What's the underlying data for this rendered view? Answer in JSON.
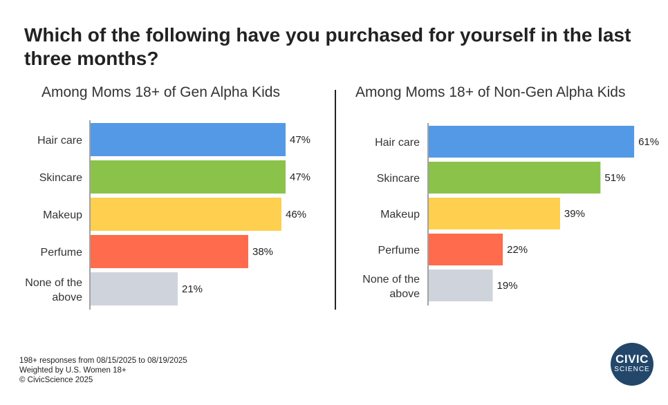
{
  "title": "Which of the following have you purchased for yourself in the last three months?",
  "colors": [
    "#5499e5",
    "#8bc34a",
    "#ffd04f",
    "#ff6b4d",
    "#cfd4dc"
  ],
  "chart_data": [
    {
      "type": "bar",
      "orientation": "horizontal",
      "title": "Among Moms 18+ of Gen Alpha Kids",
      "categories": [
        "Hair care",
        "Skincare",
        "Makeup",
        "Perfume",
        "None of the above"
      ],
      "values": [
        47,
        47,
        46,
        38,
        21
      ],
      "value_suffix": "%",
      "xlim": [
        0,
        61
      ]
    },
    {
      "type": "bar",
      "orientation": "horizontal",
      "title": "Among Moms 18+ of Non-Gen Alpha Kids",
      "categories": [
        "Hair care",
        "Skincare",
        "Makeup",
        "Perfume",
        "None of the above"
      ],
      "values": [
        61,
        51,
        39,
        22,
        19
      ],
      "value_suffix": "%",
      "xlim": [
        0,
        61
      ]
    }
  ],
  "footnotes": [
    "198+ responses from 08/15/2025 to 08/19/2025",
    "Weighted by U.S. Women 18+",
    "© CivicScience 2025"
  ],
  "logo": {
    "line1": "CIVIC",
    "line2": "SCIENCE"
  }
}
